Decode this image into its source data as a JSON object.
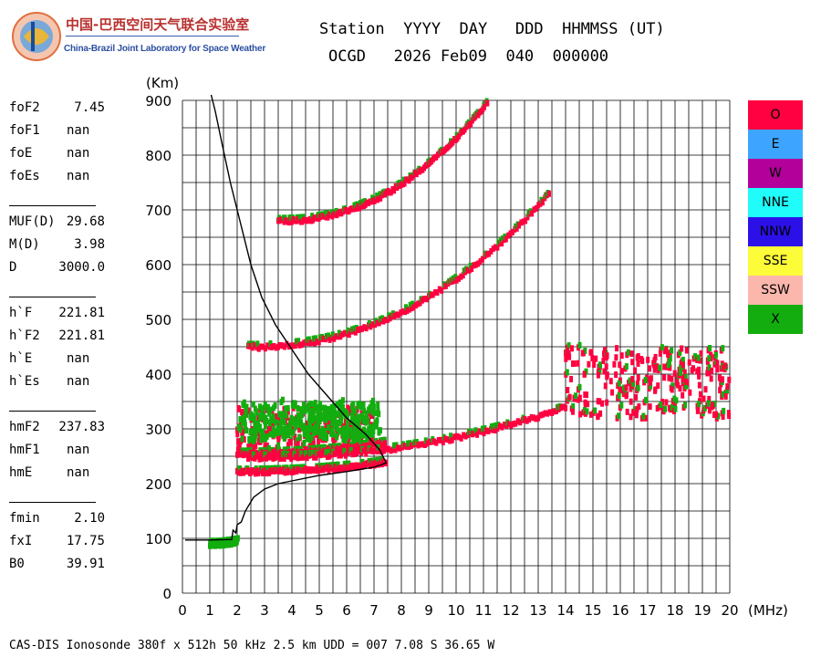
{
  "logo": {
    "title_cn": "中国-巴西空间天气联合实验室",
    "title_en": "China-Brazil Joint Laboratory for Space Weather"
  },
  "header": {
    "line1": "Station  YYYY  DAY   DDD  HHMMSS (UT)",
    "line2": "OCGD   2026 Feb09  040  000000"
  },
  "params": [
    [
      {
        "label": "foF2",
        "value": "7.45"
      },
      {
        "label": "foF1",
        "value": "nan"
      },
      {
        "label": "foE",
        "value": "nan"
      },
      {
        "label": "foEs",
        "value": "nan"
      }
    ],
    [
      {
        "label": "MUF(D)",
        "value": "29.68"
      },
      {
        "label": "M(D)",
        "value": "3.98"
      },
      {
        "label": "D",
        "value": "3000.0"
      }
    ],
    [
      {
        "label": "h`F",
        "value": "221.81"
      },
      {
        "label": "h`F2",
        "value": "221.81"
      },
      {
        "label": "h`E",
        "value": "nan"
      },
      {
        "label": "h`Es",
        "value": "nan"
      }
    ],
    [
      {
        "label": "hmF2",
        "value": "237.83"
      },
      {
        "label": "hmF1",
        "value": "nan"
      },
      {
        "label": "hmE",
        "value": "nan"
      }
    ],
    [
      {
        "label": "fmin",
        "value": "2.10"
      },
      {
        "label": "fxI",
        "value": "17.75"
      },
      {
        "label": "B0",
        "value": "39.91"
      }
    ]
  ],
  "legend": [
    {
      "label": "O",
      "color": "#ff0040"
    },
    {
      "label": "E",
      "color": "#3da5ff"
    },
    {
      "label": "W",
      "color": "#b3009b"
    },
    {
      "label": "NNE",
      "color": "#1ffcfa"
    },
    {
      "label": "NNW",
      "color": "#2c10e8"
    },
    {
      "label": "SSE",
      "color": "#fcfc38"
    },
    {
      "label": "SSW",
      "color": "#fcb7ad"
    },
    {
      "label": "X",
      "color": "#13ad10"
    }
  ],
  "footer": "CAS-DIS Ionosonde 380f x 512h 50 kHz 2.5 km UDD = 007 7.08 S 36.65 W",
  "chart_data": {
    "type": "scatter",
    "xlabel": "(MHz)",
    "ylabel": "(Km)",
    "xlim": [
      0,
      20
    ],
    "ylim": [
      0,
      900
    ],
    "xticks": [
      0,
      1,
      2,
      3,
      4,
      5,
      6,
      7,
      8,
      9,
      10,
      11,
      12,
      13,
      14,
      15,
      16,
      17,
      18,
      19,
      20
    ],
    "yticks": [
      0,
      100,
      200,
      300,
      400,
      500,
      600,
      700,
      800,
      900
    ],
    "grid": true,
    "legend_position": "right",
    "profile": {
      "color": "#000000",
      "points": [
        [
          0.1,
          97
        ],
        [
          1.0,
          97
        ],
        [
          1.8,
          98
        ],
        [
          1.85,
          115
        ],
        [
          1.95,
          110
        ],
        [
          2.0,
          125
        ],
        [
          2.15,
          130
        ],
        [
          2.3,
          150
        ],
        [
          2.6,
          175
        ],
        [
          3.0,
          190
        ],
        [
          3.5,
          200
        ],
        [
          4.0,
          205
        ],
        [
          5.0,
          215
        ],
        [
          6.0,
          222
        ],
        [
          7.0,
          230
        ],
        [
          7.45,
          237.83
        ],
        [
          7.2,
          262
        ],
        [
          6.7,
          290
        ],
        [
          6.0,
          320
        ],
        [
          5.3,
          360
        ],
        [
          4.6,
          400
        ],
        [
          4.0,
          445
        ],
        [
          3.4,
          490
        ],
        [
          2.9,
          540
        ],
        [
          2.5,
          600
        ],
        [
          2.1,
          680
        ],
        [
          1.75,
          750
        ],
        [
          1.45,
          820
        ],
        [
          1.2,
          880
        ],
        [
          1.05,
          910
        ]
      ]
    },
    "traces": [
      {
        "name": "E-layer",
        "color": "#13ad10",
        "x1": 1.0,
        "x2": 2.0,
        "y1": 90,
        "y2": 95
      },
      {
        "name": "F trace",
        "color": "#ff0040",
        "x1": 2.0,
        "x2": 7.45,
        "y1": 222,
        "y2": 240
      },
      {
        "name": "F trace upper",
        "color": "#ff0040",
        "x1": 2.0,
        "x2": 7.4,
        "y1": 255,
        "y2": 275
      },
      {
        "name": "2F",
        "color": "#ff0040",
        "x1": 2.4,
        "x2": 14.0,
        "y1": 248,
        "y2": 340
      },
      {
        "name": "2nd hop",
        "color": "#ff0040",
        "x1": 2.4,
        "x2": 13.4,
        "y1": 450,
        "y2": 730
      },
      {
        "name": "3rd hop",
        "color": "#ff0040",
        "x1": 3.5,
        "x2": 11.2,
        "y1": 680,
        "y2": 900
      }
    ],
    "spread_clusters": [
      {
        "color": "#ff0040",
        "xrange": [
          14.0,
          20.0
        ],
        "yrange": [
          320,
          450
        ]
      },
      {
        "color": "#ff0040",
        "xrange": [
          2.0,
          7.0
        ],
        "yrange": [
          260,
          340
        ]
      },
      {
        "color": "#13ad10",
        "xrange": [
          2.1,
          7.2
        ],
        "yrange": [
          280,
          350
        ]
      }
    ]
  }
}
